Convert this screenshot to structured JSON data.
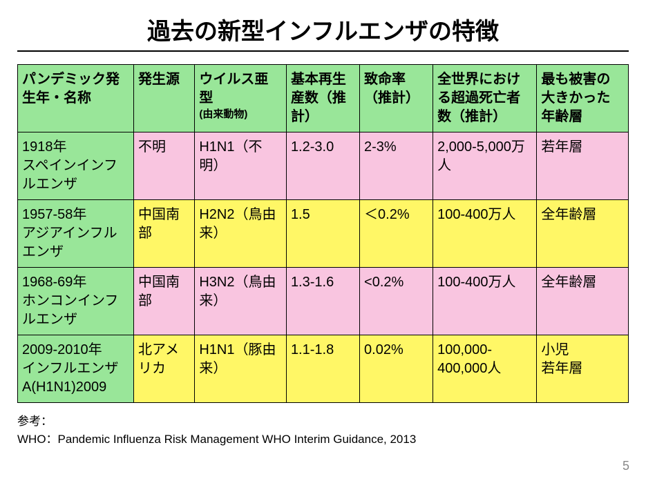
{
  "title": "過去の新型インフルエンザの特徴",
  "colors": {
    "header_bg": "#99e699",
    "firstcol_bg": "#99e699",
    "row_pink": "#f9c5e0",
    "row_yellow": "#fff766",
    "border": "#000000"
  },
  "table": {
    "columns": [
      "パンデミック発生年・名称",
      "発生源",
      "ウイルス亜型",
      "基本再生産数（推計）",
      "致命率（推計）",
      "全世界における超過死亡者数（推計）",
      "最も被害の大きかった年齢層"
    ],
    "column_sub": {
      "2": "(由来動物)"
    },
    "rows": [
      {
        "color": "row_pink",
        "cells": [
          "1918年\nスペインインフルエンザ",
          "不明",
          "H1N1（不明）",
          "1.2-3.0",
          "2-3%",
          "2,000-5,000万人",
          "若年層"
        ]
      },
      {
        "color": "row_yellow",
        "cells": [
          "1957-58年\nアジアインフルエンザ",
          "中国南部",
          "H2N2（鳥由来）",
          "1.5",
          "＜0.2%",
          "100-400万人",
          "全年齢層"
        ]
      },
      {
        "color": "row_pink",
        "cells": [
          "1968-69年\nホンコンインフルエンザ",
          "中国南部",
          "H3N2（鳥由来）",
          "1.3-1.6",
          "<0.2%",
          "100-400万人",
          "全年齢層"
        ]
      },
      {
        "color": "row_yellow",
        "cells": [
          "2009-2010年\nインフルエンザA(H1N1)2009",
          "北アメリカ",
          "H1N1（豚由来）",
          "1.1-1.8",
          "0.02%",
          "100,000-400,000人",
          "小児\n若年層"
        ]
      }
    ]
  },
  "footnote_label": "参考：",
  "footnote_source": "WHO：Pandemic Influenza Risk Management  WHO Interim Guidance, 2013",
  "page_number": "5"
}
